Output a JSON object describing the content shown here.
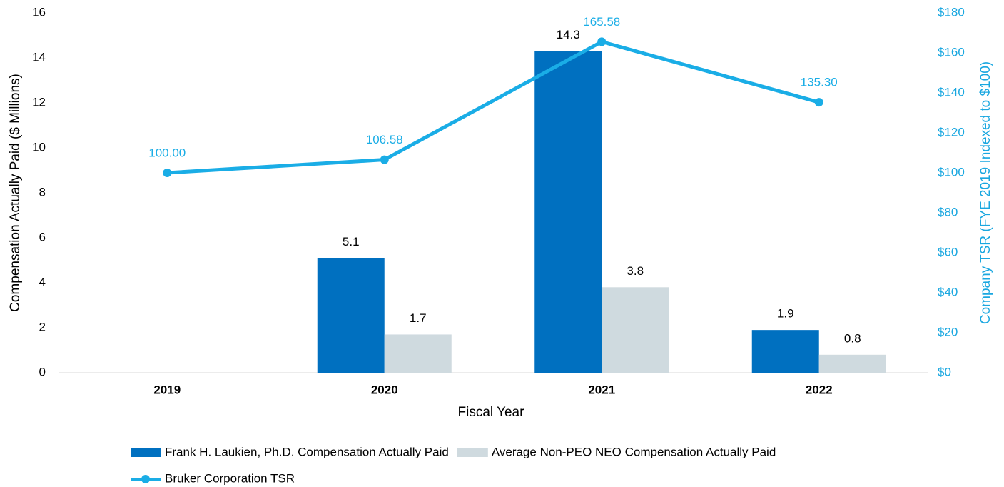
{
  "chart_data": {
    "type": "bar",
    "categories": [
      "2019",
      "2020",
      "2021",
      "2022"
    ],
    "x_label": "Fiscal Year",
    "y_label": "Compensation Actually Paid ($ Millions)",
    "y2_label": "Company TSR (FYE 2019 Indexed to $100)",
    "ylim": [
      0,
      16
    ],
    "yticks": [
      0,
      2,
      4,
      6,
      8,
      10,
      12,
      14,
      16
    ],
    "y2lim": [
      0,
      180
    ],
    "y2ticks": [
      {
        "value": 0,
        "label": "$0"
      },
      {
        "value": 20,
        "label": "$20"
      },
      {
        "value": 40,
        "label": "$40"
      },
      {
        "value": 60,
        "label": "$60"
      },
      {
        "value": 80,
        "label": "$80"
      },
      {
        "value": 100,
        "label": "$100"
      },
      {
        "value": 120,
        "label": "$120"
      },
      {
        "value": 140,
        "label": "$140"
      },
      {
        "value": 160,
        "label": "$160"
      },
      {
        "value": 180,
        "label": "$180"
      }
    ],
    "grid": false,
    "legend": "bottom",
    "series": [
      {
        "name": "Frank H. Laukien, Ph.D. Compensation Actually Paid",
        "type": "bar",
        "color": "#0070c0",
        "values": [
          null,
          5.1,
          14.3,
          1.9
        ]
      },
      {
        "name": "Average Non-PEO NEO Compensation Actually Paid",
        "type": "bar",
        "color": "#cfdadf",
        "values": [
          null,
          1.7,
          3.8,
          0.8
        ]
      },
      {
        "name": "Bruker Corporation TSR",
        "type": "line",
        "axis": "y2",
        "color": "#1aade6",
        "values": [
          100,
          106.58,
          165.58,
          135.3
        ],
        "value_labels": [
          "100.00",
          "106.58",
          "165.58",
          "135.30"
        ]
      }
    ]
  }
}
